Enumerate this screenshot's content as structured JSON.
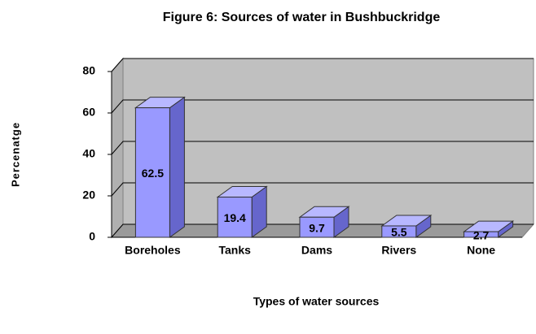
{
  "chart_data": {
    "type": "bar3d",
    "title": "Figure 6: Sources of water in Bushbuckridge",
    "ylabel": "Percenatge",
    "xlabel": "Types of  water sources",
    "categories": [
      "Boreholes",
      "Tanks",
      "Dams",
      "Rivers",
      "None"
    ],
    "values": [
      62.5,
      19.4,
      9.7,
      5.5,
      2.7
    ],
    "color": "#9999ff",
    "ylim": [
      0,
      80
    ],
    "yticks": [
      0,
      20,
      40,
      60,
      80
    ],
    "grid": true
  }
}
